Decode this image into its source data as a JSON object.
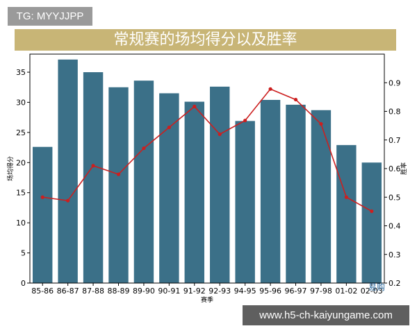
{
  "tag_label": "TG: MYYJJPP",
  "watermark_url": "www.h5-ch-kaiyungame.com",
  "watermark_logo": "易购",
  "colors": {
    "bar": "#3b7088",
    "line": "#cc1f1f",
    "banner": "#c8b576"
  },
  "chart_data": {
    "type": "bar",
    "title": "常规赛的场均得分以及胜率",
    "xlabel": "赛季",
    "ylabel": "场均得分",
    "y2label": "胜率",
    "categories": [
      "85-86",
      "86-87",
      "87-88",
      "88-89",
      "89-90",
      "90-91",
      "91-92",
      "92-93",
      "94-95",
      "95-96",
      "96-97",
      "97-98",
      "01-02",
      "02-03"
    ],
    "ylim": [
      0,
      38
    ],
    "yticks": [
      0,
      5,
      10,
      15,
      20,
      25,
      30,
      35
    ],
    "y2lim": [
      0.2,
      1.0
    ],
    "y2ticks": [
      0.2,
      0.3,
      0.4,
      0.5,
      0.6,
      0.7,
      0.8,
      0.9
    ],
    "y2tick_labels": [
      "0.2",
      "0.3",
      "0.4",
      "0.5",
      "0.6",
      "0.7",
      "0.8",
      "0.9"
    ],
    "series": [
      {
        "type": "bar",
        "axis": "left",
        "values": [
          22.6,
          37.1,
          35.0,
          32.5,
          33.6,
          31.5,
          30.1,
          32.6,
          26.9,
          30.4,
          29.6,
          28.7,
          22.9,
          20.0
        ]
      },
      {
        "type": "line",
        "axis": "right",
        "values": [
          0.5,
          0.488,
          0.61,
          0.58,
          0.671,
          0.744,
          0.817,
          0.72,
          0.768,
          0.878,
          0.841,
          0.756,
          0.5,
          0.451
        ]
      }
    ]
  }
}
